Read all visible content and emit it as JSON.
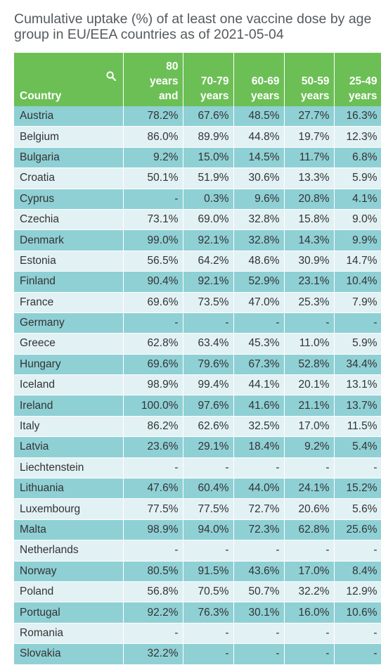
{
  "chart_data": {
    "type": "table",
    "title": "Cumulative uptake (%) of at least one vaccine dose by age group in EU/EEA countries as of 2021-05-04",
    "columns": [
      "Country",
      "80 years and",
      "70-79 years",
      "60-69 years",
      "50-59 years",
      "25-49 years"
    ],
    "header_lines": {
      "country": "Country",
      "c80": [
        "80",
        "years",
        "and"
      ],
      "c70": [
        "70-79",
        "years"
      ],
      "c60": [
        "60-69",
        "years"
      ],
      "c50": [
        "50-59",
        "years"
      ],
      "c25": [
        "25-49",
        "years"
      ]
    },
    "rows": [
      [
        "Austria",
        "78.2%",
        "67.6%",
        "48.5%",
        "27.7%",
        "16.3%"
      ],
      [
        "Belgium",
        "86.0%",
        "89.9%",
        "44.8%",
        "19.7%",
        "12.3%"
      ],
      [
        "Bulgaria",
        "9.2%",
        "15.0%",
        "14.5%",
        "11.7%",
        "6.8%"
      ],
      [
        "Croatia",
        "50.1%",
        "51.9%",
        "30.6%",
        "13.3%",
        "5.9%"
      ],
      [
        "Cyprus",
        "-",
        "0.3%",
        "9.6%",
        "20.8%",
        "4.1%"
      ],
      [
        "Czechia",
        "73.1%",
        "69.0%",
        "32.8%",
        "15.8%",
        "9.0%"
      ],
      [
        "Denmark",
        "99.0%",
        "92.1%",
        "32.8%",
        "14.3%",
        "9.9%"
      ],
      [
        "Estonia",
        "56.5%",
        "64.2%",
        "48.6%",
        "30.9%",
        "14.7%"
      ],
      [
        "Finland",
        "90.4%",
        "92.1%",
        "52.9%",
        "23.1%",
        "10.4%"
      ],
      [
        "France",
        "69.6%",
        "73.5%",
        "47.0%",
        "25.3%",
        "7.9%"
      ],
      [
        "Germany",
        "-",
        "-",
        "-",
        "-",
        "-"
      ],
      [
        "Greece",
        "62.8%",
        "63.4%",
        "45.3%",
        "11.0%",
        "5.9%"
      ],
      [
        "Hungary",
        "69.6%",
        "79.6%",
        "67.3%",
        "52.8%",
        "34.4%"
      ],
      [
        "Iceland",
        "98.9%",
        "99.4%",
        "44.1%",
        "20.1%",
        "13.1%"
      ],
      [
        "Ireland",
        "100.0%",
        "97.6%",
        "41.6%",
        "21.1%",
        "13.7%"
      ],
      [
        "Italy",
        "86.2%",
        "62.6%",
        "32.5%",
        "17.0%",
        "11.5%"
      ],
      [
        "Latvia",
        "23.6%",
        "29.1%",
        "18.4%",
        "9.2%",
        "5.4%"
      ],
      [
        "Liechtenstein",
        "-",
        "-",
        "-",
        "-",
        "-"
      ],
      [
        "Lithuania",
        "47.6%",
        "60.4%",
        "44.0%",
        "24.1%",
        "15.2%"
      ],
      [
        "Luxembourg",
        "77.5%",
        "77.5%",
        "72.7%",
        "20.6%",
        "5.6%"
      ],
      [
        "Malta",
        "98.9%",
        "94.0%",
        "72.3%",
        "62.8%",
        "25.6%"
      ],
      [
        "Netherlands",
        "-",
        "-",
        "-",
        "-",
        "-"
      ],
      [
        "Norway",
        "80.5%",
        "91.5%",
        "43.6%",
        "17.0%",
        "8.4%"
      ],
      [
        "Poland",
        "56.8%",
        "70.5%",
        "50.7%",
        "32.2%",
        "12.9%"
      ],
      [
        "Portugal",
        "92.2%",
        "76.3%",
        "30.1%",
        "16.0%",
        "10.6%"
      ],
      [
        "Romania",
        "-",
        "-",
        "-",
        "-",
        "-"
      ],
      [
        "Slovakia",
        "32.2%",
        "-",
        "-",
        "-",
        "-"
      ]
    ]
  },
  "colors": {
    "header_bg": "#6cbf55",
    "row_dark": "#8fd0d5",
    "row_light": "#e2f1f4",
    "title_text": "#555a5e"
  },
  "icons": {
    "search": "search-icon"
  }
}
